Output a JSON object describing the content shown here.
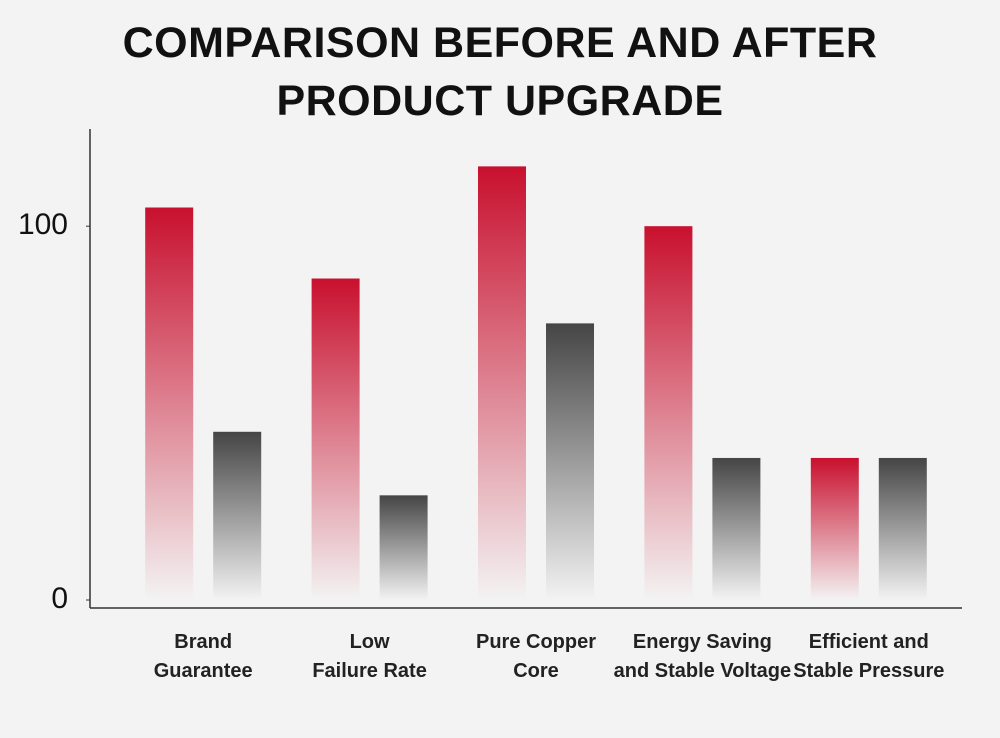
{
  "chart_data": {
    "type": "bar",
    "title": "COMPARISON BEFORE AND AFTER\nPRODUCT UPGRADE",
    "categories": [
      "Brand\nGuarantee",
      "Low\nFailure Rate",
      "Pure Copper\nCore",
      "Energy Saving\nand Stable Voltage",
      "Efficient and\nStable Pressure"
    ],
    "series": [
      {
        "color": "#c8102e",
        "values": [
          105,
          86,
          116,
          100,
          38
        ]
      },
      {
        "color": "#454545",
        "values": [
          45,
          28,
          74,
          38,
          38
        ]
      }
    ],
    "ylim": [
      0,
      126
    ],
    "yticks": [
      0,
      100
    ],
    "grid": false
  }
}
